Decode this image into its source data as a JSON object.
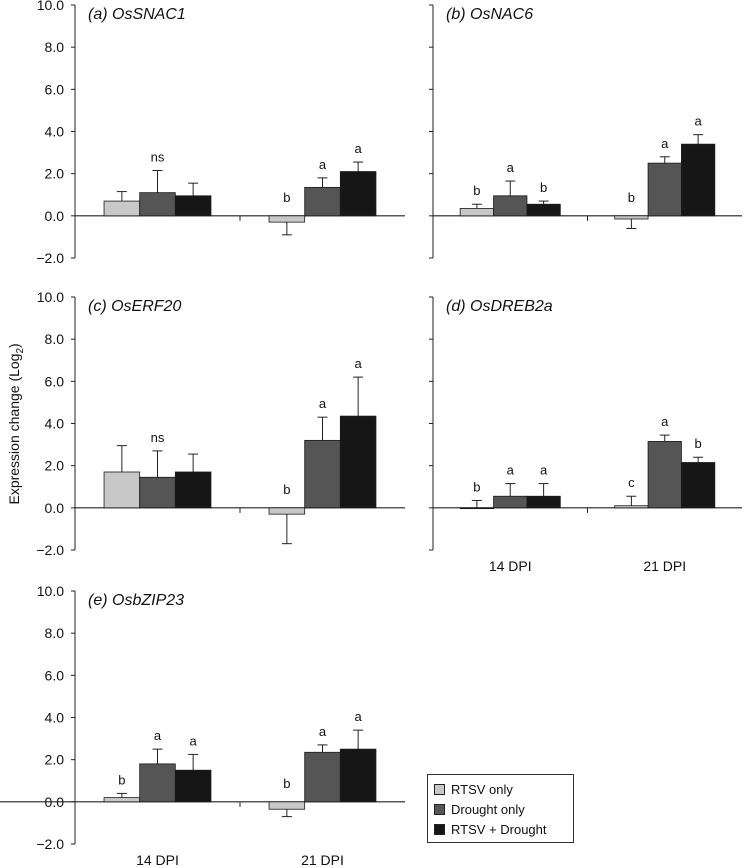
{
  "colors": {
    "rtsv": "#c8c8c8",
    "drought": "#555555",
    "both": "#161616"
  },
  "ylabel_main": "Expression change (Log",
  "ylabel_sub": "2",
  "ylabel_end": ")",
  "legend": [
    {
      "label": "RTSV only",
      "color": "#c8c8c8"
    },
    {
      "label": "Drought only",
      "color": "#555555"
    },
    {
      "label": "RTSV + Drought",
      "color": "#161616"
    }
  ],
  "chart_data": [
    {
      "type": "bar",
      "panel": "(a)",
      "gene": "OsSNAC1",
      "categories": [
        "14 DPI",
        "21 DPI"
      ],
      "ylim": [
        -2,
        10
      ],
      "yticks": [
        "10.0",
        "8.0",
        "6.0",
        "4.0",
        "2.0",
        "0.0",
        "−2.0"
      ],
      "series": [
        {
          "name": "RTSV only",
          "values": [
            0.7,
            -0.3
          ],
          "errors": [
            0.45,
            0.6
          ]
        },
        {
          "name": "Drought only",
          "values": [
            1.1,
            1.35
          ],
          "errors": [
            1.05,
            0.45
          ]
        },
        {
          "name": "RTSV + Drought",
          "values": [
            0.95,
            2.1
          ],
          "errors": [
            0.6,
            0.45
          ]
        }
      ],
      "annotations": [
        [
          "",
          "ns",
          ""
        ],
        [
          "b",
          "a",
          "a"
        ]
      ],
      "xlabels": []
    },
    {
      "type": "bar",
      "panel": "(b)",
      "gene": "OsNAC6",
      "categories": [
        "14 DPI",
        "21 DPI"
      ],
      "ylim": [
        -2,
        10
      ],
      "yticks": [],
      "series": [
        {
          "name": "RTSV only",
          "values": [
            0.35,
            -0.15
          ],
          "errors": [
            0.2,
            0.45
          ]
        },
        {
          "name": "Drought only",
          "values": [
            0.95,
            2.5
          ],
          "errors": [
            0.7,
            0.3
          ]
        },
        {
          "name": "RTSV + Drought",
          "values": [
            0.55,
            3.4
          ],
          "errors": [
            0.15,
            0.45
          ]
        }
      ],
      "annotations": [
        [
          "b",
          "a",
          "b"
        ],
        [
          "b",
          "a",
          "a"
        ]
      ],
      "xlabels": []
    },
    {
      "type": "bar",
      "panel": "(c)",
      "gene": "OsERF20",
      "categories": [
        "14 DPI",
        "21 DPI"
      ],
      "ylim": [
        -2,
        10
      ],
      "yticks": [
        "10.0",
        "8.0",
        "6.0",
        "4.0",
        "2.0",
        "0.0",
        "−2.0"
      ],
      "series": [
        {
          "name": "RTSV only",
          "values": [
            1.7,
            -0.3
          ],
          "errors": [
            1.25,
            1.4
          ]
        },
        {
          "name": "Drought only",
          "values": [
            1.45,
            3.2
          ],
          "errors": [
            1.25,
            1.1
          ]
        },
        {
          "name": "RTSV + Drought",
          "values": [
            1.7,
            4.35
          ],
          "errors": [
            0.85,
            1.85
          ]
        }
      ],
      "annotations": [
        [
          "",
          "ns",
          ""
        ],
        [
          "b",
          "a",
          "a"
        ]
      ],
      "xlabels": []
    },
    {
      "type": "bar",
      "panel": "(d)",
      "gene": "OsDREB2a",
      "categories": [
        "14 DPI",
        "21 DPI"
      ],
      "ylim": [
        -2,
        10
      ],
      "yticks": [],
      "series": [
        {
          "name": "RTSV only",
          "values": [
            0.0,
            0.1
          ],
          "errors": [
            0.35,
            0.45
          ]
        },
        {
          "name": "Drought only",
          "values": [
            0.55,
            3.15
          ],
          "errors": [
            0.6,
            0.3
          ]
        },
        {
          "name": "RTSV + Drought",
          "values": [
            0.55,
            2.15
          ],
          "errors": [
            0.6,
            0.25
          ]
        }
      ],
      "annotations": [
        [
          "b",
          "a",
          "a"
        ],
        [
          "c",
          "a",
          "b"
        ]
      ],
      "xlabels": [
        "14 DPI",
        "21 DPI"
      ]
    },
    {
      "type": "bar",
      "panel": "(e)",
      "gene": "OsbZIP23",
      "categories": [
        "14 DPI",
        "21 DPI"
      ],
      "ylim": [
        -2,
        10
      ],
      "yticks": [
        "10.0",
        "8.0",
        "6.0",
        "4.0",
        "2.0",
        "0.0",
        "−2.0"
      ],
      "series": [
        {
          "name": "RTSV only",
          "values": [
            0.2,
            -0.35
          ],
          "errors": [
            0.2,
            0.35
          ]
        },
        {
          "name": "Drought only",
          "values": [
            1.8,
            2.35
          ],
          "errors": [
            0.7,
            0.35
          ]
        },
        {
          "name": "RTSV + Drought",
          "values": [
            1.5,
            2.5
          ],
          "errors": [
            0.75,
            0.9
          ]
        }
      ],
      "annotations": [
        [
          "b",
          "a",
          "a"
        ],
        [
          "b",
          "a",
          "a"
        ]
      ],
      "xlabels": [
        "14 DPI",
        "21 DPI"
      ]
    }
  ]
}
